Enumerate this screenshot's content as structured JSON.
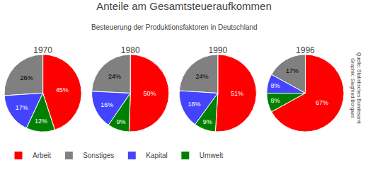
{
  "chart_data": {
    "type": "pie",
    "title": "Anteile am Gesamtsteueraufkommen",
    "subtitle": "Besteuerung der Produktionsfaktoren in Deutschland",
    "categories": [
      "Arbeit",
      "Sonstiges",
      "Kapital",
      "Umwelt"
    ],
    "colors": [
      "#ff0000",
      "#808080",
      "#4444ff",
      "#008000"
    ],
    "series": [
      {
        "name": "1970",
        "values": [
          45,
          26,
          17,
          12
        ],
        "value_labels": [
          "45%",
          "26%",
          "17%",
          "12%"
        ]
      },
      {
        "name": "1980",
        "values": [
          50,
          24,
          16,
          9
        ],
        "value_labels": [
          "50%",
          "24%",
          "16%",
          "9%"
        ]
      },
      {
        "name": "1990",
        "values": [
          51,
          24,
          16,
          9
        ],
        "value_labels": [
          "51%",
          "24%",
          "16%",
          "9%"
        ]
      },
      {
        "name": "1996",
        "values": [
          67,
          17,
          8,
          8
        ],
        "value_labels": [
          "67%",
          "17%",
          "8%",
          "8%"
        ]
      }
    ],
    "data_labels": true,
    "legend": "bottom",
    "annotations": [
      "Quelle: Statistisches Bundesamt",
      "Graphik: Siegfried Borgaes"
    ]
  }
}
